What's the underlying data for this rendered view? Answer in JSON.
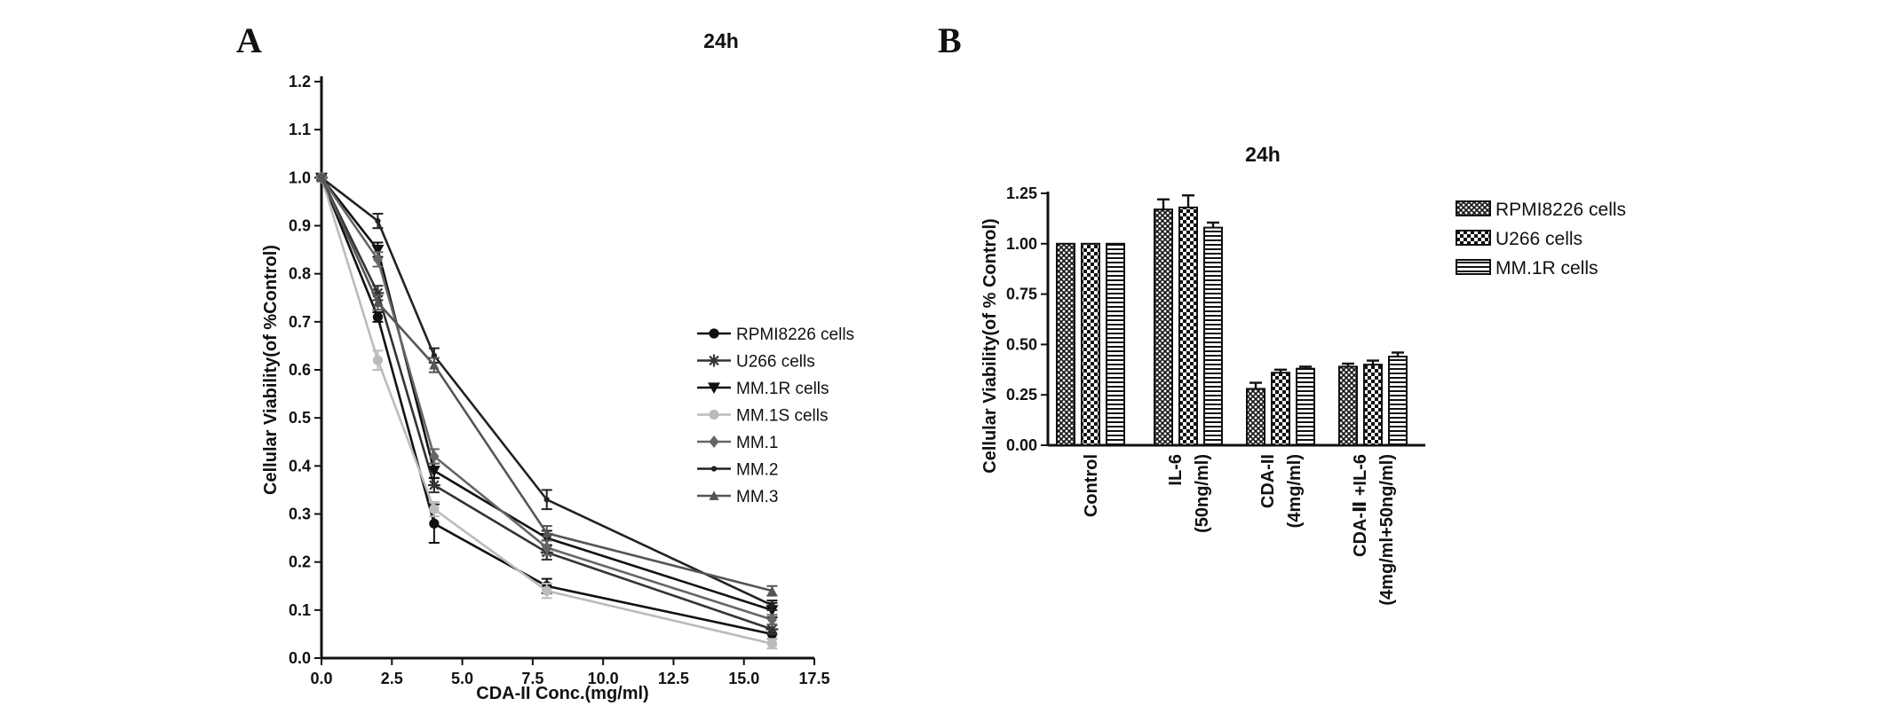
{
  "panel_a_letter": "A",
  "panel_b_letter": "B",
  "chart_data": [
    {
      "type": "line",
      "title": "24h",
      "xlabel": "CDA-II Conc.(mg/ml)",
      "ylabel": "Cellular Viability(of %Control)",
      "xlim": [
        0,
        17.5
      ],
      "ylim": [
        0,
        1.2
      ],
      "xticks": [
        "0.0",
        "2.5",
        "5.0",
        "7.5",
        "10.0",
        "12.5",
        "15.0",
        "17.5"
      ],
      "yticks": [
        "0.0",
        "0.1",
        "0.2",
        "0.3",
        "0.4",
        "0.5",
        "0.6",
        "0.7",
        "0.8",
        "0.9",
        "1.0",
        "1.1",
        "1.2"
      ],
      "legend_position": "right",
      "x": [
        0,
        2,
        4,
        8,
        16
      ],
      "series": [
        {
          "name": "RPMI8226 cells",
          "marker": "circle",
          "color": "#111111",
          "values": [
            1.0,
            0.71,
            0.28,
            0.15,
            0.05
          ],
          "errors": [
            0.005,
            0.01,
            0.04,
            0.015,
            0.01
          ]
        },
        {
          "name": "U266 cells",
          "marker": "star",
          "color": "#333333",
          "values": [
            1.0,
            0.76,
            0.36,
            0.22,
            0.06
          ],
          "errors": [
            0.005,
            0.015,
            0.015,
            0.015,
            0.01
          ]
        },
        {
          "name": "MM.1R cells",
          "marker": "triangle-down",
          "color": "#111111",
          "values": [
            1.0,
            0.85,
            0.39,
            0.25,
            0.1
          ],
          "errors": [
            0.005,
            0.015,
            0.015,
            0.015,
            0.015
          ]
        },
        {
          "name": "MM.1S cells",
          "marker": "circle",
          "color": "#bbbbbb",
          "values": [
            1.0,
            0.62,
            0.31,
            0.14,
            0.03
          ],
          "errors": [
            0.005,
            0.02,
            0.015,
            0.015,
            0.01
          ]
        },
        {
          "name": "MM.1",
          "marker": "diamond",
          "color": "#666666",
          "values": [
            1.0,
            0.83,
            0.42,
            0.23,
            0.08
          ],
          "errors": [
            0.005,
            0.015,
            0.015,
            0.015,
            0.01
          ]
        },
        {
          "name": "MM.2",
          "marker": "dot",
          "color": "#222222",
          "values": [
            1.0,
            0.91,
            0.63,
            0.33,
            0.11
          ],
          "errors": [
            0.005,
            0.015,
            0.015,
            0.02,
            0.01
          ]
        },
        {
          "name": "MM.3",
          "marker": "triangle-up",
          "color": "#555555",
          "values": [
            1.0,
            0.74,
            0.61,
            0.26,
            0.14
          ],
          "errors": [
            0.005,
            0.015,
            0.015,
            0.015,
            0.01
          ]
        }
      ]
    },
    {
      "type": "bar",
      "title": "24h",
      "ylabel": "Cellular Viability(of % Control)",
      "ylim": [
        0,
        1.25
      ],
      "yticks": [
        "0.00",
        "0.25",
        "0.50",
        "0.75",
        "1.00",
        "1.25"
      ],
      "legend_position": "top-right",
      "categories": [
        [
          "Control"
        ],
        [
          "IL-6",
          "(50ng/ml)"
        ],
        [
          "CDA-II",
          "(4mg/ml)"
        ],
        [
          "CDA-Ⅱ +IL-6",
          "(4mg/ml+50ng/ml)"
        ]
      ],
      "series": [
        {
          "name": "RPMI8226 cells",
          "pattern": "crosshatch",
          "values": [
            1.0,
            1.17,
            0.28,
            0.39
          ],
          "errors": [
            0.0,
            0.05,
            0.03,
            0.015
          ]
        },
        {
          "name": "U266 cells",
          "pattern": "checker",
          "values": [
            1.0,
            1.18,
            0.36,
            0.4
          ],
          "errors": [
            0.0,
            0.06,
            0.015,
            0.02
          ]
        },
        {
          "name": "MM.1R cells",
          "pattern": "hlines",
          "values": [
            1.0,
            1.08,
            0.38,
            0.44
          ],
          "errors": [
            0.0,
            0.025,
            0.01,
            0.02
          ]
        }
      ]
    }
  ]
}
